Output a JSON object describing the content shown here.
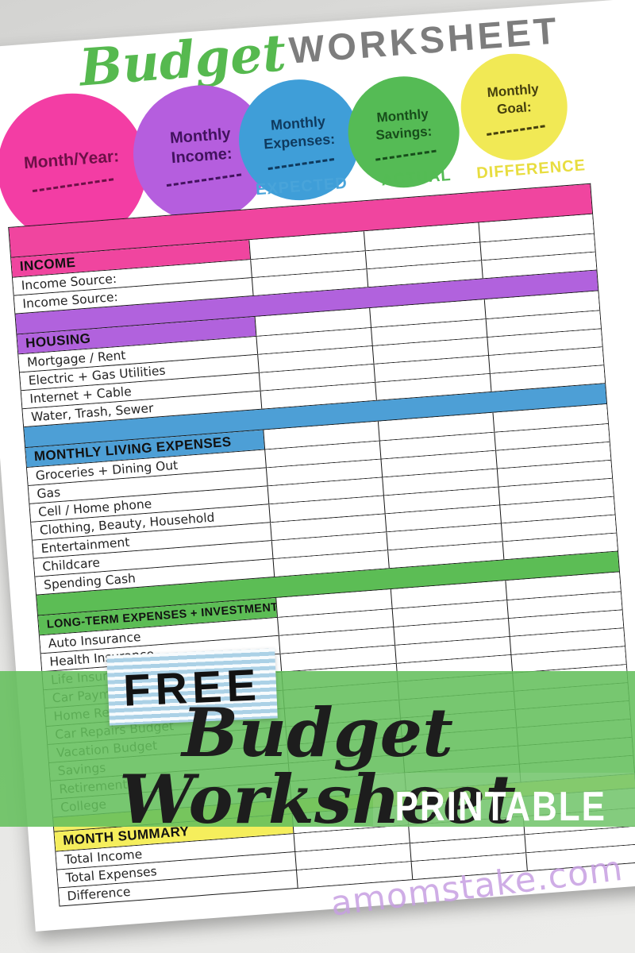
{
  "title": {
    "script": "Budget",
    "main": "WORKSHEET",
    "script_color": "#56b94f",
    "main_color": "#7d7d7d"
  },
  "circles": [
    {
      "id": "month-year",
      "label": "Month/Year:",
      "color": "#f33da4",
      "text_color": "#6d1047"
    },
    {
      "id": "monthly-income",
      "label": "Monthly Income:",
      "color": "#b55ede",
      "text_color": "#42125e"
    },
    {
      "id": "monthly-expenses",
      "label": "Monthly Expenses:",
      "color": "#3f9ed8",
      "text_color": "#0f3a5e"
    },
    {
      "id": "monthly-savings",
      "label": "Monthly Savings:",
      "color": "#55bb55",
      "text_color": "#174d1b"
    },
    {
      "id": "monthly-goal",
      "label": "Monthly Goal:",
      "color": "#f1e955",
      "text_color": "#46400e"
    }
  ],
  "columns": [
    {
      "label": "EXPECTED",
      "color": "#49a4da"
    },
    {
      "label": "ACTUAL",
      "color": "#54bb54"
    },
    {
      "label": "DIFFERENCE",
      "color": "#e8dd3f"
    }
  ],
  "table": {
    "rows": [
      {
        "type": "band",
        "color": "#f0459f",
        "size": "tall"
      },
      {
        "type": "section",
        "label": "INCOME",
        "color": "#f0459f"
      },
      {
        "type": "item",
        "label": "Income Source:"
      },
      {
        "type": "item",
        "label": "Income Source:"
      },
      {
        "type": "band",
        "color": "#b162dd",
        "size": ""
      },
      {
        "type": "section",
        "label": "HOUSING",
        "color": "#b162dd"
      },
      {
        "type": "item",
        "label": "Mortgage / Rent"
      },
      {
        "type": "item",
        "label": "Electric + Gas Utilities"
      },
      {
        "type": "item",
        "label": "Internet + Cable"
      },
      {
        "type": "item",
        "label": "Water, Trash, Sewer"
      },
      {
        "type": "band",
        "color": "#4d9fd6",
        "size": ""
      },
      {
        "type": "section",
        "label": "MONTHLY LIVING EXPENSES",
        "color": "#4d9fd6"
      },
      {
        "type": "item",
        "label": "Groceries + Dining Out"
      },
      {
        "type": "item",
        "label": "Gas"
      },
      {
        "type": "item",
        "label": "Cell / Home phone"
      },
      {
        "type": "item",
        "label": "Clothing, Beauty, Household"
      },
      {
        "type": "item",
        "label": "Entertainment"
      },
      {
        "type": "item",
        "label": "Childcare"
      },
      {
        "type": "item",
        "label": "Spending Cash"
      },
      {
        "type": "band",
        "color": "#5cbd55",
        "size": ""
      },
      {
        "type": "section",
        "label": "LONG-TERM EXPENSES + INVESTMENTS",
        "color": "#5cbd55"
      },
      {
        "type": "item",
        "label": "Auto Insurance"
      },
      {
        "type": "item",
        "label": "Health Insurance"
      },
      {
        "type": "item",
        "label": "Life Insurance"
      },
      {
        "type": "item",
        "label": "Car Payment"
      },
      {
        "type": "item",
        "label": "Home Repairs Budget"
      },
      {
        "type": "item",
        "label": "Car Repairs Budget"
      },
      {
        "type": "item",
        "label": "Vacation Budget"
      },
      {
        "type": "item",
        "label": "Savings"
      },
      {
        "type": "item",
        "label": "Retirement"
      },
      {
        "type": "item",
        "label": "College"
      },
      {
        "type": "band",
        "color": "#f3ee66",
        "size": "thin"
      },
      {
        "type": "section",
        "label": "MONTH SUMMARY",
        "color": "#f5ee5c"
      },
      {
        "type": "item",
        "label": "Total Income"
      },
      {
        "type": "item",
        "label": "Total Expenses"
      },
      {
        "type": "item",
        "label": "Difference"
      }
    ]
  },
  "banner": {
    "free": "FREE",
    "title": "Budget Worksheet",
    "subtitle": "PRINTABLE",
    "overlay_color": "rgba(100,191,92,0.88)"
  },
  "watermark": "amomstake.com"
}
